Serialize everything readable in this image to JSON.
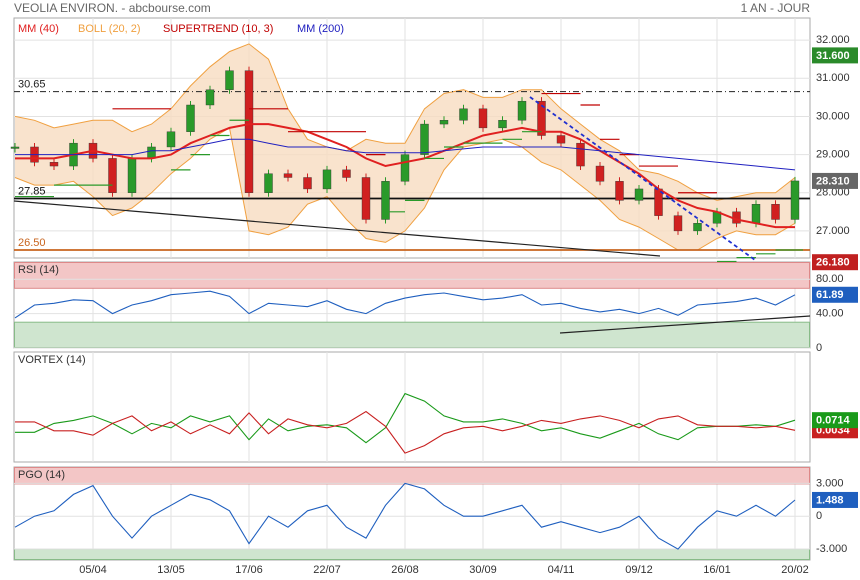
{
  "header": {
    "title": "VEOLIA ENVIRON. - abcbourse.com",
    "period": "1 AN - JOUR"
  },
  "chart_data": [
    {
      "type": "candlestick",
      "categories": [
        null,
        null,
        null,
        null,
        "05/04",
        null,
        null,
        null,
        "13/05",
        null,
        null,
        null,
        "17/06",
        null,
        null,
        null,
        "22/07",
        null,
        null,
        null,
        "26/08",
        null,
        null,
        null,
        "30/09",
        null,
        null,
        null,
        "04/11",
        null,
        null,
        null,
        "09/12",
        null,
        null,
        null,
        "16/01",
        null,
        null,
        null,
        "20/02"
      ],
      "close": [
        29.2,
        28.8,
        28.7,
        29.3,
        28.9,
        28.0,
        28.9,
        29.2,
        29.6,
        30.3,
        30.7,
        31.2,
        28.0,
        28.5,
        28.4,
        28.1,
        28.6,
        28.4,
        27.3,
        28.3,
        29.0,
        29.8,
        29.9,
        30.2,
        29.7,
        29.9,
        30.4,
        29.5,
        29.3,
        28.7,
        28.3,
        27.8,
        28.1,
        27.4,
        27.0,
        27.2,
        27.5,
        27.2,
        27.7,
        27.3,
        28.31
      ],
      "up_color": "#2a9a2a",
      "down_color": "#d02020",
      "series": [
        {
          "name": "MM (40)",
          "color": "#e02020",
          "values": [
            28.9,
            28.9,
            28.9,
            29.0,
            29.1,
            29.0,
            28.9,
            28.9,
            29.0,
            29.3,
            29.5,
            29.7,
            29.8,
            29.8,
            29.7,
            29.6,
            29.4,
            29.2,
            28.9,
            28.7,
            28.8,
            28.9,
            29.1,
            29.3,
            29.5,
            29.6,
            29.7,
            29.6,
            29.6,
            29.4,
            29.1,
            28.8,
            28.5,
            28.1,
            27.8,
            27.6,
            27.5,
            27.3,
            27.2,
            27.1,
            27.1
          ]
        },
        {
          "name": "BOLL (20, 2)",
          "color": "#f0a040",
          "fill": "#f7dcc0",
          "upper": [
            30.0,
            29.9,
            29.7,
            29.8,
            29.9,
            29.9,
            29.6,
            29.8,
            30.2,
            30.8,
            31.3,
            31.7,
            31.9,
            31.5,
            30.2,
            29.4,
            29.2,
            29.1,
            29.4,
            29.3,
            29.3,
            30.2,
            30.6,
            30.7,
            30.5,
            30.5,
            30.7,
            30.7,
            30.2,
            29.8,
            29.4,
            29.1,
            28.6,
            28.5,
            28.3,
            28.0,
            27.8,
            27.9,
            28.0,
            28.0,
            28.4
          ],
          "lower": [
            28.4,
            28.2,
            28.2,
            28.3,
            27.9,
            27.4,
            27.6,
            28.0,
            28.5,
            28.9,
            29.4,
            29.7,
            27.0,
            26.9,
            27.1,
            27.7,
            27.9,
            27.3,
            26.8,
            26.7,
            27.0,
            27.6,
            28.6,
            29.2,
            29.3,
            29.4,
            29.2,
            28.8,
            28.6,
            28.2,
            27.8,
            27.3,
            27.1,
            26.8,
            26.5,
            26.5,
            26.8,
            27.0,
            26.9,
            26.9,
            27.2
          ]
        },
        {
          "name": "SUPERTREND (10, 3)",
          "color": "#c00000",
          "up_color": "#2a9a2a",
          "values": [
            27.9,
            27.9,
            28.2,
            28.2,
            28.2,
            30.2,
            30.2,
            30.2,
            28.6,
            29.0,
            29.5,
            29.9,
            30.2,
            30.2,
            29.6,
            29.6,
            29.6,
            29.6,
            29.0,
            27.5,
            27.8,
            28.9,
            29.2,
            29.3,
            29.3,
            29.4,
            29.6,
            30.6,
            30.6,
            30.3,
            29.4,
            29.0,
            28.7,
            28.7,
            28.0,
            28.0,
            26.2,
            26.3,
            26.4,
            26.5,
            26.5
          ]
        },
        {
          "name": "MM (200)",
          "color": "#2020c0",
          "values": [
            29.0,
            29.0,
            29.0,
            29.0,
            29.0,
            29.0,
            29.0,
            29.1,
            29.1,
            29.2,
            29.3,
            29.4,
            29.4,
            29.3,
            29.2,
            29.2,
            29.2,
            29.1,
            29.05,
            29.05,
            29.05,
            29.05,
            29.1,
            29.15,
            29.2,
            29.2,
            29.2,
            29.2,
            29.2,
            29.15,
            29.1,
            29.05,
            29.0,
            28.95,
            28.9,
            28.85,
            28.8,
            28.75,
            28.7,
            28.65,
            28.6
          ]
        }
      ],
      "ylim": [
        26.29,
        32.58
      ],
      "yticks": [
        {
          "value": 27,
          "label": "27.000"
        },
        {
          "value": 28,
          "label": "28.000"
        },
        {
          "value": 29,
          "label": "29.000"
        },
        {
          "value": 30,
          "label": "30.000"
        },
        {
          "value": 31,
          "label": "31.000"
        },
        {
          "value": 32,
          "label": "32.000"
        }
      ],
      "levels": [
        {
          "value": 30.65,
          "label": "30.65",
          "color": "#222222",
          "style": "dashdot"
        },
        {
          "value": 27.85,
          "label": "27.85",
          "color": "#111111",
          "style": "solid"
        },
        {
          "value": 26.5,
          "label": "26.50",
          "color": "#c8641e",
          "style": "solid"
        }
      ],
      "price_labels": [
        {
          "value": 31.6,
          "label": "31.600",
          "color": "#2a8a2a"
        },
        {
          "value": 28.31,
          "label": "28.310",
          "color": "#666666"
        },
        {
          "value": 26.18,
          "label": "26.180",
          "color": "#c02020"
        }
      ],
      "grid": true
    },
    {
      "type": "line",
      "title": "RSI (14)",
      "series": [
        {
          "color": "#1f5fbf",
          "values": [
            35,
            50,
            52,
            56,
            55,
            40,
            50,
            55,
            62,
            64,
            66,
            60,
            40,
            52,
            50,
            48,
            55,
            45,
            40,
            52,
            58,
            62,
            64,
            60,
            56,
            58,
            62,
            50,
            52,
            46,
            42,
            45,
            40,
            46,
            38,
            50,
            52,
            54,
            58,
            50,
            61.89
          ]
        }
      ],
      "ylim": [
        0,
        100
      ],
      "yticks": [
        {
          "value": 80,
          "label": "80.00"
        },
        {
          "value": 40,
          "label": "40.00"
        },
        0
      ],
      "bands": [
        30,
        70
      ],
      "grid": true
    },
    {
      "type": "line",
      "title": "VORTEX (14)",
      "series": [
        {
          "color": "#1a9a1a",
          "values": [
            -0.01,
            -0.01,
            0.05,
            0.07,
            0.1,
            0.05,
            -0.02,
            0.05,
            0.02,
            0.1,
            0.06,
            0.1,
            -0.06,
            0.08,
            0.0,
            0.03,
            0.04,
            0.02,
            -0.08,
            0.02,
            0.25,
            0.2,
            0.1,
            0.06,
            0.06,
            0.08,
            0.05,
            0.0,
            0.02,
            -0.02,
            -0.05,
            0.0,
            0.05,
            -0.02,
            -0.06,
            0.02,
            0.03,
            0.03,
            0.04,
            0.03,
            0.0714
          ]
        },
        {
          "color": "#c82020",
          "values": [
            0.06,
            0.06,
            0.0,
            0.0,
            -0.03,
            0.05,
            0.1,
            0.0,
            0.06,
            -0.02,
            0.04,
            -0.02,
            0.12,
            -0.02,
            0.08,
            0.04,
            0.02,
            0.05,
            0.13,
            0.03,
            -0.15,
            -0.1,
            -0.02,
            0.02,
            0.03,
            0.0,
            0.03,
            0.07,
            0.05,
            0.08,
            0.1,
            0.07,
            0.02,
            0.08,
            0.1,
            0.04,
            0.03,
            0.03,
            0.02,
            0.03,
            0.0034
          ]
        }
      ],
      "ylim": [
        -0.21,
        0.53
      ],
      "grid": true
    },
    {
      "type": "line",
      "title": "PGO (14)",
      "series": [
        {
          "color": "#1f5fbf",
          "values": [
            -1,
            0,
            0.5,
            2,
            2.8,
            0,
            -2,
            0,
            1,
            2,
            1.5,
            0.5,
            -2.5,
            0,
            -1,
            0.5,
            1,
            -1,
            -2,
            1,
            3,
            2.5,
            1,
            0,
            0,
            0.5,
            1,
            -1,
            -0.5,
            -1,
            -1.5,
            -1,
            0,
            -2,
            -3,
            -1,
            0.5,
            0,
            1,
            0,
            1.488
          ]
        }
      ],
      "ylim": [
        -4,
        4.5
      ],
      "yticks": [
        {
          "value": 3,
          "label": "3.000"
        },
        0,
        {
          "value": -3,
          "label": "-3.000"
        }
      ],
      "bands": [
        -3,
        3
      ],
      "grid": true
    }
  ]
}
